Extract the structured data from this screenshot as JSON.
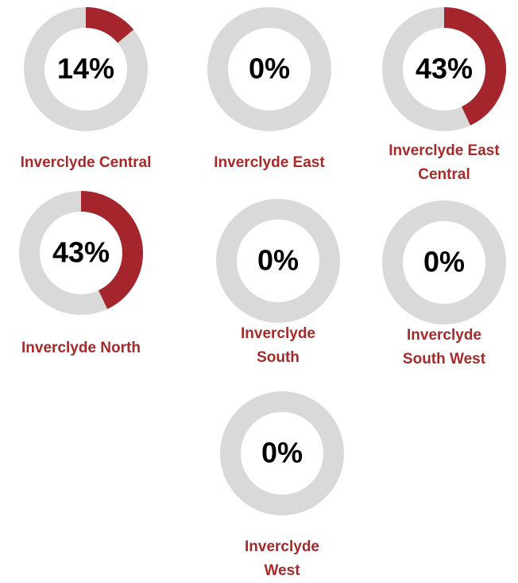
{
  "chart_data": [
    {
      "type": "donut",
      "title": "Inverclyde Central",
      "values": [
        14
      ],
      "value_labels": [
        "14%"
      ],
      "ylim": [
        0,
        100
      ],
      "color": "#a4262c",
      "track_color": "#d9d9d9"
    },
    {
      "type": "donut",
      "title": "Inverclyde East",
      "values": [
        0
      ],
      "value_labels": [
        "0%"
      ],
      "ylim": [
        0,
        100
      ],
      "color": "#a4262c",
      "track_color": "#d9d9d9"
    },
    {
      "type": "donut",
      "title": "Inverclyde East Central",
      "values": [
        43
      ],
      "value_labels": [
        "43%"
      ],
      "ylim": [
        0,
        100
      ],
      "color": "#a4262c",
      "track_color": "#d9d9d9"
    },
    {
      "type": "donut",
      "title": "Inverclyde North",
      "values": [
        43
      ],
      "value_labels": [
        "43%"
      ],
      "ylim": [
        0,
        100
      ],
      "color": "#a4262c",
      "track_color": "#d9d9d9"
    },
    {
      "type": "donut",
      "title": "Inverclyde South",
      "values": [
        0
      ],
      "value_labels": [
        "0%"
      ],
      "ylim": [
        0,
        100
      ],
      "color": "#a4262c",
      "track_color": "#d9d9d9"
    },
    {
      "type": "donut",
      "title": "Inverclyde South West",
      "values": [
        0
      ],
      "value_labels": [
        "0%"
      ],
      "ylim": [
        0,
        100
      ],
      "color": "#a4262c",
      "track_color": "#d9d9d9"
    },
    {
      "type": "donut",
      "title": "Inverclyde West",
      "values": [
        0
      ],
      "value_labels": [
        "0%"
      ],
      "ylim": [
        0,
        100
      ],
      "color": "#a4262c",
      "track_color": "#d9d9d9"
    }
  ]
}
